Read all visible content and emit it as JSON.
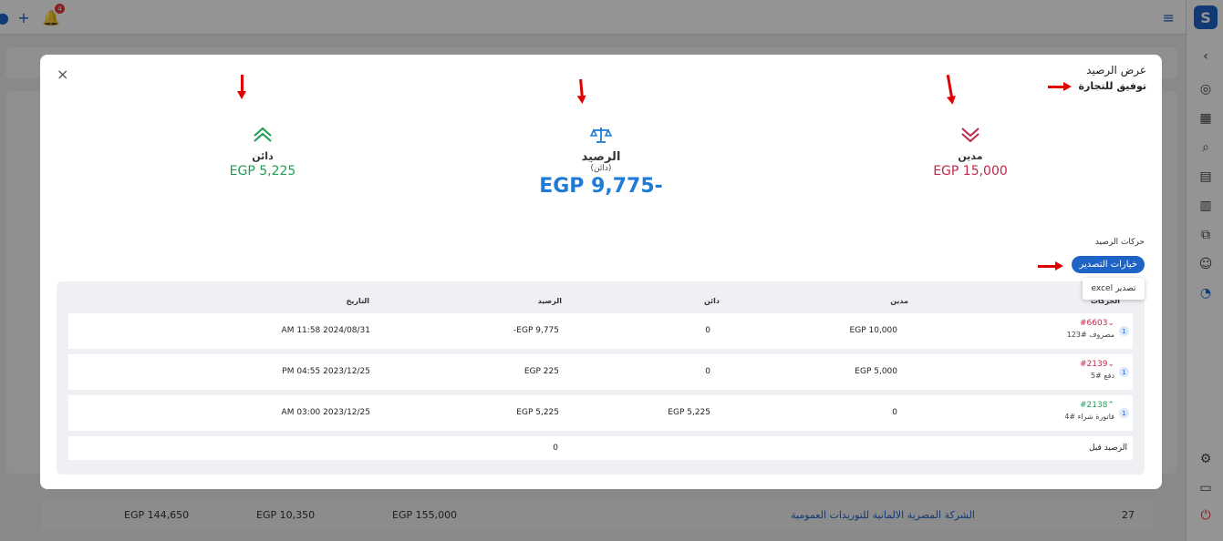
{
  "background": {
    "notification_count": "4",
    "row": {
      "num": "27",
      "company": "الشركة المصرية الالمانية للتوريدات العمومية",
      "v1": "EGP 155,000",
      "v2": "EGP 10,350",
      "v3": "EGP 144,650"
    }
  },
  "modal": {
    "title": "عرض الرصيد",
    "subtitle": "توفيق للتجارة",
    "close_glyph": "×",
    "debit": {
      "label": "مدين",
      "value": "EGP 15,000",
      "icon": "double-chevron-down-icon"
    },
    "balance": {
      "label": "الرصيد",
      "note": "(دائن)",
      "value": "EGP 9,775-",
      "icon": "scale-icon"
    },
    "credit": {
      "label": "دائن",
      "value": "EGP 5,225",
      "icon": "double-chevron-up-icon"
    },
    "movements_title": "حركات الرصيد",
    "export_button": "خيارات التصدير",
    "export_excel": "تصدير excel",
    "table": {
      "headers": {
        "movement": "الحركات",
        "debit": "مدين",
        "credit": "دائن",
        "balance": "الرصيد",
        "date": "التاريخ"
      },
      "rows": [
        {
          "count": "1",
          "id": "#6603",
          "desc": "مصروف #123",
          "direction": "down",
          "debit": "EGP 10,000",
          "credit": "0",
          "balance": "-EGP 9,775",
          "date": "AM 11:58 2024/08/31"
        },
        {
          "count": "1",
          "id": "#2139",
          "desc": "دفع #5",
          "direction": "down",
          "debit": "EGP 5,000",
          "credit": "0",
          "balance": "EGP 225",
          "date": "PM 04:55 2023/12/25"
        },
        {
          "count": "1",
          "id": "#2138",
          "desc": "فاتورة شراء #4",
          "direction": "up",
          "debit": "0",
          "credit": "EGP 5,225",
          "balance": "EGP 5,225",
          "date": "AM 03:00 2023/12/25"
        }
      ],
      "opening": {
        "label": "الرصيد قبل",
        "value": "0"
      }
    }
  },
  "colors": {
    "primary": "#1e63c6",
    "debit": "#c0284a",
    "credit": "#1f9d55",
    "balance": "#1e7bd6",
    "annotation_arrow": "#e00000"
  }
}
